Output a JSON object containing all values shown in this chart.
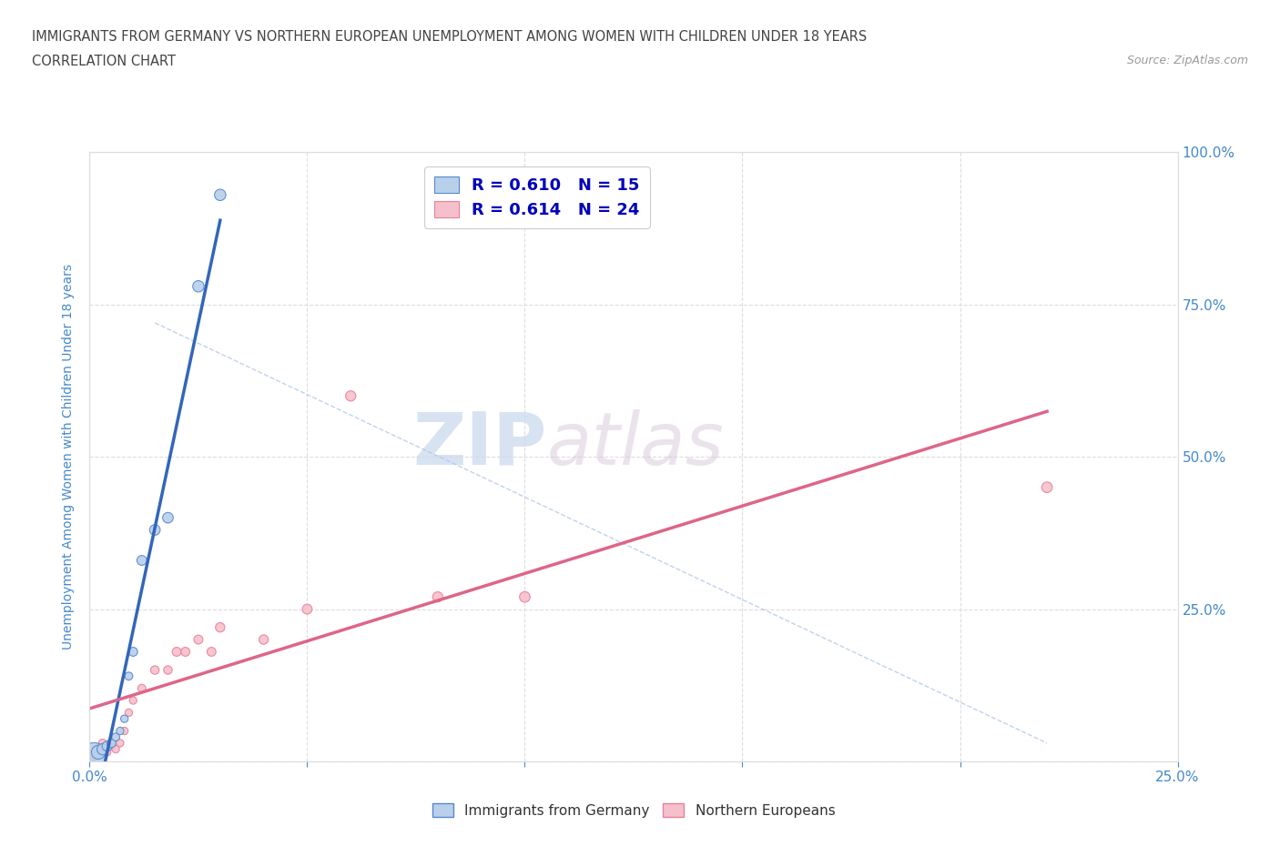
{
  "title_line1": "IMMIGRANTS FROM GERMANY VS NORTHERN EUROPEAN UNEMPLOYMENT AMONG WOMEN WITH CHILDREN UNDER 18 YEARS",
  "title_line2": "CORRELATION CHART",
  "source": "Source: ZipAtlas.com",
  "ylabel": "Unemployment Among Women with Children Under 18 years",
  "xlim": [
    0,
    0.25
  ],
  "ylim": [
    0,
    1.0
  ],
  "x_ticks": [
    0.0,
    0.05,
    0.1,
    0.15,
    0.2,
    0.25
  ],
  "x_tick_labels": [
    "0.0%",
    "",
    "",
    "",
    "",
    "25.0%"
  ],
  "y_ticks": [
    0.0,
    0.25,
    0.5,
    0.75,
    1.0
  ],
  "y_tick_labels_left": [
    "0.0%",
    "25.0%",
    "50.0%",
    "75.0%",
    "100.0%"
  ],
  "y_tick_labels_right": [
    "",
    "25.0%",
    "50.0%",
    "75.0%",
    "100.0%"
  ],
  "germany_x": [
    0.001,
    0.002,
    0.003,
    0.004,
    0.005,
    0.006,
    0.007,
    0.008,
    0.009,
    0.01,
    0.012,
    0.015,
    0.018,
    0.025,
    0.03
  ],
  "germany_y": [
    0.01,
    0.015,
    0.02,
    0.025,
    0.03,
    0.04,
    0.05,
    0.07,
    0.14,
    0.18,
    0.33,
    0.38,
    0.4,
    0.78,
    0.93
  ],
  "germany_sizes": [
    400,
    120,
    80,
    60,
    50,
    40,
    35,
    35,
    40,
    50,
    60,
    70,
    70,
    80,
    80
  ],
  "northern_x": [
    0.001,
    0.002,
    0.003,
    0.004,
    0.005,
    0.006,
    0.007,
    0.008,
    0.009,
    0.01,
    0.012,
    0.015,
    0.018,
    0.02,
    0.022,
    0.025,
    0.028,
    0.03,
    0.04,
    0.05,
    0.06,
    0.08,
    0.1,
    0.22
  ],
  "northern_y": [
    0.01,
    0.02,
    0.03,
    0.015,
    0.025,
    0.02,
    0.03,
    0.05,
    0.08,
    0.1,
    0.12,
    0.15,
    0.15,
    0.18,
    0.18,
    0.2,
    0.18,
    0.22,
    0.2,
    0.25,
    0.6,
    0.27,
    0.27,
    0.45
  ],
  "northern_sizes": [
    60,
    50,
    40,
    35,
    35,
    35,
    35,
    35,
    35,
    35,
    40,
    45,
    45,
    50,
    50,
    50,
    50,
    55,
    55,
    60,
    65,
    65,
    70,
    70
  ],
  "germany_color": "#b8d0ea",
  "germany_edge_color": "#5588cc",
  "northern_color": "#f5c0cc",
  "northern_edge_color": "#e88098",
  "regression_germany_color": "#3366bb",
  "regression_northern_color": "#dd6688",
  "legend_r_germany": "R = 0.610",
  "legend_n_germany": "N = 15",
  "legend_r_northern": "R = 0.614",
  "legend_n_northern": "N = 24",
  "watermark_zip": "ZIP",
  "watermark_atlas": "atlas",
  "background_color": "#ffffff",
  "grid_color": "#dddddd",
  "title_color": "#444444",
  "axis_label_color": "#4488cc",
  "tick_color": "#4488cc",
  "legend_value_color": "#0000bb",
  "bottom_legend_color": "#333333"
}
